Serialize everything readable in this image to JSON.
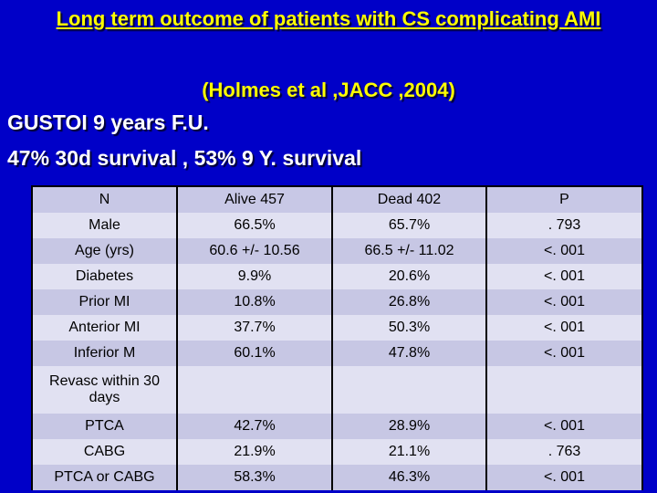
{
  "slide": {
    "title": "Long term outcome of patients with CS complicating AMI",
    "subtitle": "(Holmes et al ,JACC ,2004)",
    "line1": "GUSTOI 9 years F.U.",
    "line2": "47% 30d survival , 53% 9 Y. survival"
  },
  "colors": {
    "background": "#0000c8",
    "title": "#ffff00",
    "body_text": "#ffffff",
    "row_light": "#e1e1f2",
    "row_dark": "#c7c7e4"
  },
  "table": {
    "header": [
      "N",
      "Alive 457",
      "Dead 402",
      "P"
    ],
    "rows": [
      [
        "Male",
        "66.5%",
        "65.7%",
        ". 793"
      ],
      [
        "Age (yrs)",
        "60.6 +/- 10.56",
        "66.5 +/- 11.02",
        "<. 001"
      ],
      [
        "Diabetes",
        "9.9%",
        "20.6%",
        "<. 001"
      ],
      [
        "Prior MI",
        "10.8%",
        "26.8%",
        "<. 001"
      ],
      [
        "Anterior MI",
        "37.7%",
        "50.3%",
        "<. 001"
      ],
      [
        "Inferior M",
        "60.1%",
        "47.8%",
        "<. 001"
      ],
      [
        "Revasc within 30 days",
        "",
        "",
        ""
      ],
      [
        "PTCA",
        "42.7%",
        "28.9%",
        "<. 001"
      ],
      [
        "CABG",
        "21.9%",
        "21.1%",
        ". 763"
      ],
      [
        "PTCA or CABG",
        "58.3%",
        "46.3%",
        "<. 001"
      ]
    ]
  }
}
